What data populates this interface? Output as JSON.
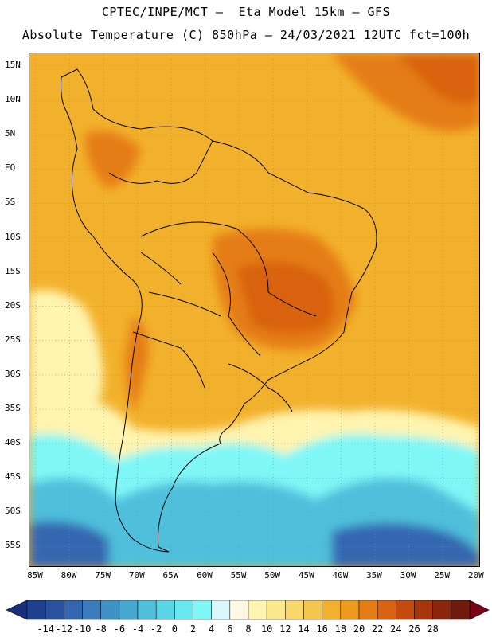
{
  "title_line1": "CPTEC/INPE/MCT –  Eta Model 15km – GFS",
  "title_line2": "Absolute Temperature (C) 850hPa – 24/03/2021 12UTC fct=100h",
  "lat_labels": [
    "15N",
    "10N",
    "5N",
    "EQ",
    "5S",
    "10S",
    "15S",
    "20S",
    "25S",
    "30S",
    "35S",
    "40S",
    "45S",
    "50S",
    "55S"
  ],
  "lon_labels": [
    "85W",
    "80W",
    "75W",
    "70W",
    "65W",
    "60W",
    "55W",
    "50W",
    "45W",
    "40W",
    "35W",
    "30W",
    "25W",
    "20W"
  ],
  "colorbar": {
    "labels": [
      "-14",
      "-12",
      "-10",
      "-8",
      "-6",
      "-4",
      "-2",
      "0",
      "2",
      "4",
      "6",
      "8",
      "10",
      "12",
      "14",
      "16",
      "18",
      "20",
      "22",
      "24",
      "26",
      "28"
    ],
    "colors": [
      "#1f3f8f",
      "#2a52a0",
      "#3466b0",
      "#3b7cbd",
      "#3f92c6",
      "#45a8d0",
      "#4fbfdc",
      "#5ad6e6",
      "#66e8ee",
      "#7ff7f7",
      "#d8f7fb",
      "#fff8e6",
      "#fff4b0",
      "#fbe88a",
      "#f8d86a",
      "#f5c64e",
      "#f2b12c",
      "#ee9a1c",
      "#e57d14",
      "#d8620f",
      "#c44a0d",
      "#a8360c",
      "#8a260b",
      "#6e1a0c"
    ],
    "low_arrow_color": "#1a2f7a",
    "high_arrow_color": "#7a0018"
  },
  "map_colors": {
    "ocean_north": "#f2b12c",
    "ocean_warm": "#f5c64e",
    "hot": "#e57d14",
    "very_hot": "#d8620f",
    "cool": "#fff4b0",
    "cold": "#7ff7f7",
    "colder": "#4fbfdc",
    "coldest": "#3466b0"
  }
}
